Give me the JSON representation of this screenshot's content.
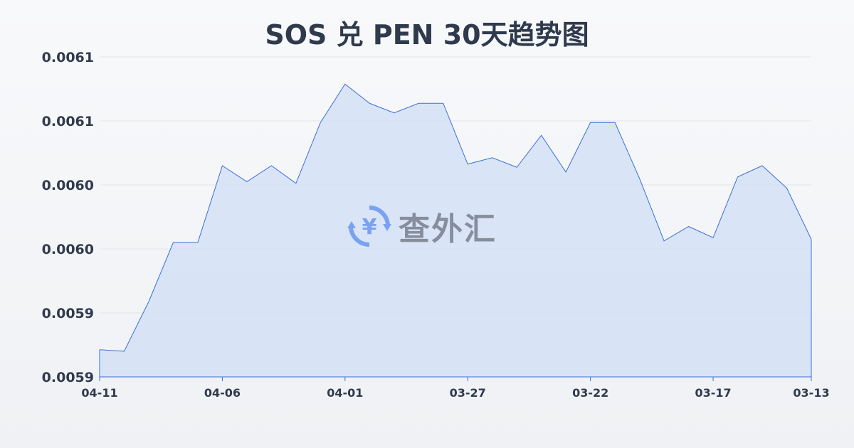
{
  "chart_data": {
    "type": "area",
    "title": "SOS 兑 PEN 30天趋势图",
    "xlabel": "",
    "ylabel": "",
    "x": [
      "04-11",
      "04-10",
      "04-09",
      "04-08",
      "04-07",
      "04-06",
      "04-05",
      "04-04",
      "04-03",
      "04-02",
      "04-01",
      "03-31",
      "03-30",
      "03-29",
      "03-28",
      "03-27",
      "03-26",
      "03-25",
      "03-24",
      "03-23",
      "03-22",
      "03-21",
      "03-20",
      "03-19",
      "03-18",
      "03-17",
      "03-16",
      "03-15",
      "03-14",
      "03-13"
    ],
    "values": [
      0.005917,
      0.005916,
      0.005947,
      0.005984,
      0.005984,
      0.006032,
      0.006022,
      0.006032,
      0.006021,
      0.006059,
      0.006083,
      0.006071,
      0.006065,
      0.006071,
      0.006071,
      0.006033,
      0.006037,
      0.006031,
      0.006051,
      0.006028,
      0.006059,
      0.006059,
      0.006024,
      0.005985,
      0.005994,
      0.005987,
      0.006025,
      0.006032,
      0.006018,
      0.005986
    ],
    "ylim": [
      0.0059,
      0.0061
    ],
    "yticks": [
      0.0059,
      0.00594,
      0.00598,
      0.00602,
      0.00606,
      0.0061
    ],
    "ytick_labels": [
      "0.0059",
      "0.0059",
      "0.0060",
      "0.0060",
      "0.0061",
      "0.0061"
    ],
    "xtick_labels": [
      "04-11",
      "04-06",
      "04-01",
      "03-27",
      "03-22",
      "03-17",
      "03-13"
    ],
    "grid": true,
    "line_color": "#3a6fd8",
    "fill_color": "#d4e0f6"
  },
  "watermark": {
    "text": "查外汇",
    "icon": "yen-exchange-icon"
  }
}
